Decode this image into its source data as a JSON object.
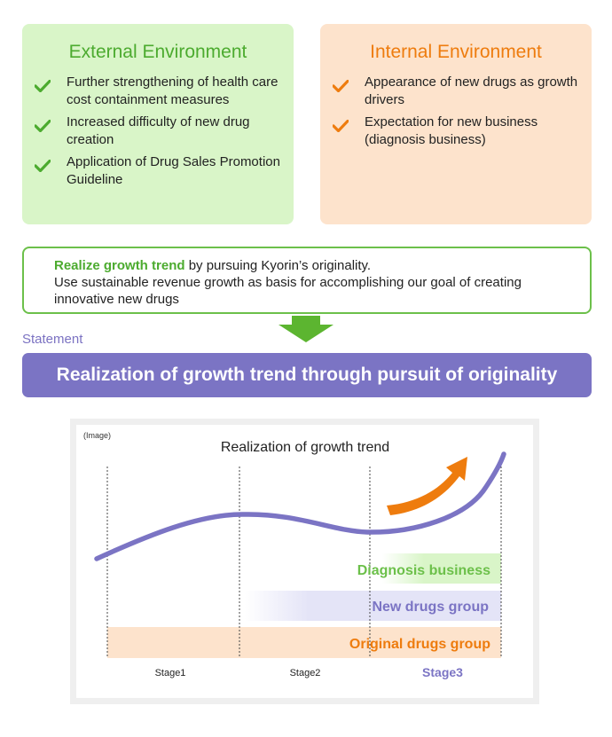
{
  "external": {
    "title": "External Environment",
    "items": [
      "Further strengthening of health care cost containment measures",
      "Increased difficulty of new drug creation",
      "Application of Drug Sales Promotion Guideline"
    ]
  },
  "internal": {
    "title": "Internal Environment",
    "items": [
      "Appearance of new drugs as growth drivers",
      "Expectation for new business (diagnosis business)"
    ]
  },
  "mission": {
    "highlight": "Realize growth trend",
    "rest_line1": " by pursuing Kyorin’s originality.",
    "line2": "Use sustainable revenue growth as basis for accomplishing our goal of creating innovative new drugs"
  },
  "statement": {
    "label": "Statement",
    "text": "Realization of growth trend through pursuit of originality"
  },
  "diagram": {
    "image_note": "(Image)",
    "title": "Realization of growth trend",
    "bands": [
      {
        "label": "Diagnosis business",
        "color": "#6cc04a"
      },
      {
        "label": "New drugs group",
        "color": "#7b74c4"
      },
      {
        "label": "Original drugs group",
        "color": "#ee7c0e"
      }
    ],
    "stages": [
      "Stage1",
      "Stage2",
      "Stage3"
    ],
    "colors": {
      "curve": "#7b74c4",
      "arrow": "#ee7c0e",
      "diagnosis_fill": "#d9f5c8",
      "new_drugs_fill": "#e4e4f7",
      "original_fill": "#fde3cc"
    }
  }
}
